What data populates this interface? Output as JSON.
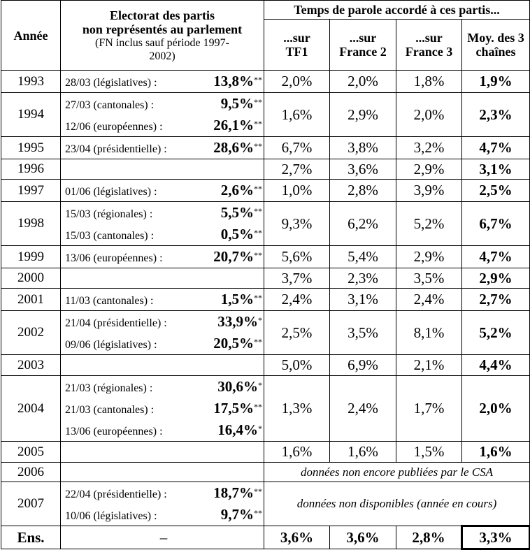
{
  "header": {
    "annee": "Année",
    "electorat_l1": "Electorat des partis",
    "electorat_l2": "non représentés au parlement",
    "electorat_note": "(FN inclus sauf période 1997-2002)",
    "temps": "Temps de parole accordé à ces partis...",
    "tf1": "...sur TF1",
    "france2": "...sur France 2",
    "france3": "...sur France 3",
    "moy": "Moy. des 3 chaînes"
  },
  "rows": [
    {
      "year": "1993",
      "elections": [
        {
          "date": "28/03 (législatives) :",
          "value": "13,8%",
          "stars": "**"
        }
      ],
      "tf1": "2,0%",
      "f2": "2,0%",
      "f3": "1,8%",
      "avg": "1,9%"
    },
    {
      "year": "1994",
      "elections": [
        {
          "date": "27/03 (cantonales) :",
          "value": "9,5%",
          "stars": "**"
        },
        {
          "date": "12/06 (européennes) :",
          "value": "26,1%",
          "stars": "**"
        }
      ],
      "tf1": "1,6%",
      "f2": "2,9%",
      "f3": "2,0%",
      "avg": "2,3%"
    },
    {
      "year": "1995",
      "elections": [
        {
          "date": "23/04 (présidentielle) :",
          "value": "28,6%",
          "stars": "**"
        }
      ],
      "tf1": "6,7%",
      "f2": "3,8%",
      "f3": "3,2%",
      "avg": "4,7%"
    },
    {
      "year": "1996",
      "elections": [],
      "tf1": "2,7%",
      "f2": "3,6%",
      "f3": "2,9%",
      "avg": "3,1%"
    },
    {
      "year": "1997",
      "elections": [
        {
          "date": "01/06 (législatives) :",
          "value": "2,6%",
          "stars": "**"
        }
      ],
      "tf1": "1,0%",
      "f2": "2,8%",
      "f3": "3,9%",
      "avg": "2,5%"
    },
    {
      "year": "1998",
      "elections": [
        {
          "date": "15/03 (régionales) :",
          "value": "5,5%",
          "stars": "**"
        },
        {
          "date": "15/03 (cantonales) :",
          "value": "0,5%",
          "stars": "**"
        }
      ],
      "tf1": "9,3%",
      "f2": "6,2%",
      "f3": "5,2%",
      "avg": "6,7%"
    },
    {
      "year": "1999",
      "elections": [
        {
          "date": "13/06 (européennes) :",
          "value": "20,7%",
          "stars": "**"
        }
      ],
      "tf1": "5,6%",
      "f2": "5,4%",
      "f3": "2,9%",
      "avg": "4,7%"
    },
    {
      "year": "2000",
      "elections": [],
      "tf1": "3,7%",
      "f2": "2,3%",
      "f3": "3,5%",
      "avg": "2,9%"
    },
    {
      "year": "2001",
      "elections": [
        {
          "date": "11/03 (cantonales) :",
          "value": "1,5%",
          "stars": "**"
        }
      ],
      "tf1": "2,4%",
      "f2": "3,1%",
      "f3": "2,4%",
      "avg": "2,7%"
    },
    {
      "year": "2002",
      "elections": [
        {
          "date": "21/04 (présidentielle) :",
          "value": "33,9%",
          "stars": "*"
        },
        {
          "date": "09/06 (législatives) :",
          "value": "20,5%",
          "stars": "**"
        }
      ],
      "tf1": "2,5%",
      "f2": "3,5%",
      "f3": "8,1%",
      "avg": "5,2%"
    },
    {
      "year": "2003",
      "elections": [],
      "tf1": "5,0%",
      "f2": "6,9%",
      "f3": "2,1%",
      "avg": "4,4%"
    },
    {
      "year": "2004",
      "elections": [
        {
          "date": "21/03 (régionales) :",
          "value": "30,6%",
          "stars": "*"
        },
        {
          "date": "21/03 (cantonales) :",
          "value": "17,5%",
          "stars": "**"
        },
        {
          "date": "13/06 (européennes) :",
          "value": "16,4%",
          "stars": "*"
        }
      ],
      "tf1": "1,3%",
      "f2": "2,4%",
      "f3": "1,7%",
      "avg": "2,0%"
    },
    {
      "year": "2005",
      "elections": [],
      "tf1": "1,6%",
      "f2": "1,6%",
      "f3": "1,5%",
      "avg": "1,6%"
    },
    {
      "year": "2006",
      "elections": [],
      "note": "données non encore publiées par le CSA"
    },
    {
      "year": "2007",
      "elections": [
        {
          "date": "22/04 (présidentielle) :",
          "value": "18,7%",
          "stars": "**"
        },
        {
          "date": "10/06 (législatives) :",
          "value": "9,7%",
          "stars": "**"
        }
      ],
      "note": "données non disponibles (année en cours)"
    }
  ],
  "total": {
    "label": "Ens.",
    "elections": "–",
    "tf1": "3,6%",
    "f2": "3,6%",
    "f3": "2,8%",
    "avg": "3,3%"
  }
}
